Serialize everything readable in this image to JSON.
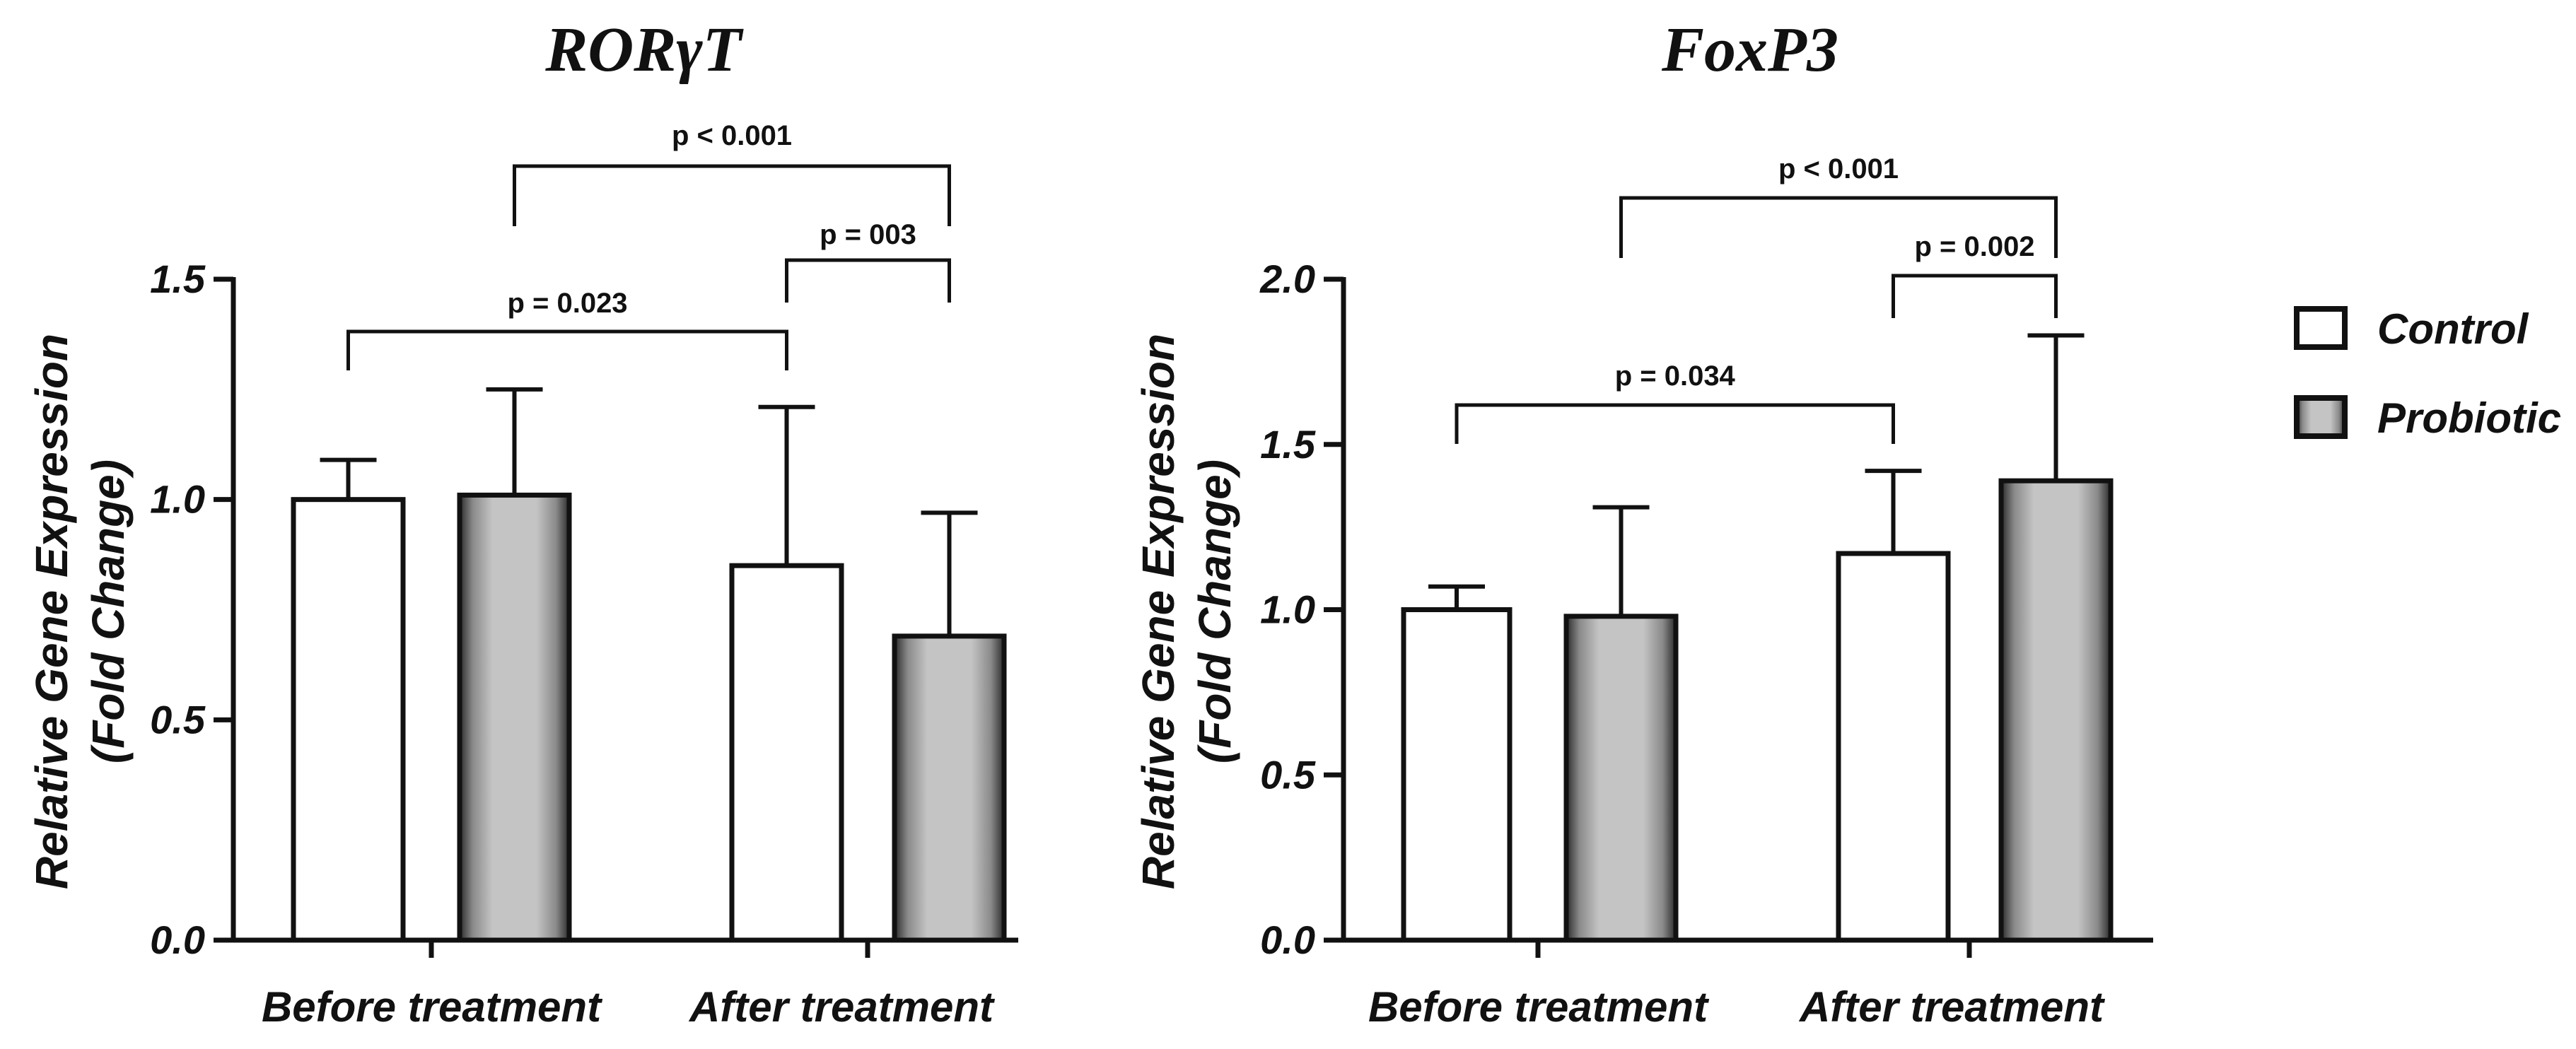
{
  "chart_data": [
    {
      "type": "bar",
      "title": "RORγT",
      "ylabel_line1": "Relative Gene Expression",
      "ylabel_line2": "(Fold Change)",
      "categories": [
        "Before treatment",
        "After treatment"
      ],
      "ylim": [
        0,
        1.5
      ],
      "yticks": [
        "0.0",
        "0.5",
        "1.0",
        "1.5"
      ],
      "series": [
        {
          "name": "Control",
          "values": [
            1.0,
            0.85
          ],
          "errors": [
            0.09,
            0.36
          ]
        },
        {
          "name": "Probiotic",
          "values": [
            1.01,
            0.69
          ],
          "errors": [
            0.24,
            0.28
          ]
        }
      ],
      "comparisons": [
        {
          "label": "p < 0.001",
          "from": "Before treatment / Probiotic",
          "to": "After treatment / Probiotic"
        },
        {
          "label": "p = 003",
          "from": "After treatment / Control",
          "to": "After treatment / Probiotic"
        },
        {
          "label": "p = 0.023",
          "from": "Before treatment / Control",
          "to": "After treatment / Control"
        }
      ]
    },
    {
      "type": "bar",
      "title": "FoxP3",
      "ylabel_line1": "Relative Gene Expression",
      "ylabel_line2": "(Fold Change)",
      "categories": [
        "Before treatment",
        "After treatment"
      ],
      "ylim": [
        0,
        2.0
      ],
      "yticks": [
        "0.0",
        "0.5",
        "1.0",
        "1.5",
        "2.0"
      ],
      "series": [
        {
          "name": "Control",
          "values": [
            1.0,
            1.17
          ],
          "errors": [
            0.07,
            0.25
          ]
        },
        {
          "name": "Probiotic",
          "values": [
            0.98,
            1.39
          ],
          "errors": [
            0.33,
            0.44
          ]
        }
      ],
      "comparisons": [
        {
          "label": "p < 0.001",
          "from": "Before treatment / Probiotic",
          "to": "After treatment / Probiotic"
        },
        {
          "label": "p = 0.002",
          "from": "After treatment / Control",
          "to": "After treatment / Probiotic"
        },
        {
          "label": "p = 0.034",
          "from": "Before treatment / Control",
          "to": "After treatment / Control"
        }
      ]
    }
  ],
  "legend": {
    "items": [
      {
        "label": "Control",
        "color": "#ffffff"
      },
      {
        "label": "Probiotic",
        "color": "#b8b8b8"
      }
    ]
  },
  "colors": {
    "control_fill": "#ffffff",
    "probiotic_fill": "#bdbdbd",
    "probiotic_edge": "#2a2a2a",
    "ink": "#111111"
  }
}
